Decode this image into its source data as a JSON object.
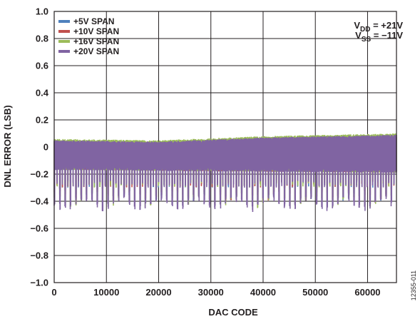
{
  "chart_data": {
    "type": "line",
    "title": "",
    "xlabel": "DAC CODE",
    "ylabel": "DNL ERROR (LSB)",
    "xlim": [
      0,
      65535
    ],
    "ylim": [
      -1.0,
      1.0
    ],
    "x_ticks": [
      "0",
      "10000",
      "20000",
      "30000",
      "40000",
      "50000",
      "60000"
    ],
    "y_ticks": [
      "1.0",
      "0.8",
      "0.6",
      "0.4",
      "0.2",
      "0",
      "−0.2",
      "−0.4",
      "−0.6",
      "−0.8",
      "−1.0"
    ],
    "grid": true,
    "legend_position": "top-left",
    "series": [
      {
        "name": "+5V SPAN",
        "color": "#4f81bd",
        "upper": [
          [
            0,
            0.05
          ],
          [
            20000,
            0.04
          ],
          [
            40000,
            0.07
          ],
          [
            65535,
            0.09
          ]
        ],
        "lower": [
          [
            0,
            -0.17
          ],
          [
            65535,
            -0.19
          ]
        ],
        "spike_min": -0.36
      },
      {
        "name": "+10V SPAN",
        "color": "#c0504d",
        "upper": [
          [
            0,
            0.05
          ],
          [
            20000,
            0.04
          ],
          [
            40000,
            0.07
          ],
          [
            65535,
            0.09
          ]
        ],
        "lower": [
          [
            0,
            -0.17
          ],
          [
            65535,
            -0.19
          ]
        ],
        "spike_min": -0.37
      },
      {
        "name": "+16V SPAN",
        "color": "#9bbb59",
        "upper": [
          [
            0,
            0.06
          ],
          [
            20000,
            0.05
          ],
          [
            40000,
            0.08
          ],
          [
            65535,
            0.1
          ]
        ],
        "lower": [
          [
            0,
            -0.17
          ],
          [
            65535,
            -0.19
          ]
        ],
        "spike_min": -0.41
      },
      {
        "name": "+20V SPAN",
        "color": "#8064a2",
        "upper": [
          [
            0,
            0.05
          ],
          [
            20000,
            0.04
          ],
          [
            40000,
            0.07
          ],
          [
            65535,
            0.09
          ]
        ],
        "lower": [
          [
            0,
            -0.17
          ],
          [
            65535,
            -0.19
          ]
        ],
        "spike_min": -0.44
      }
    ],
    "annotations": [
      {
        "text_main": "V",
        "text_sub": "DD",
        "text_rest": " = +21V"
      },
      {
        "text_main": "V",
        "text_sub": "SS",
        "text_rest": " = −11V"
      }
    ]
  },
  "figure_id": "12355-011"
}
